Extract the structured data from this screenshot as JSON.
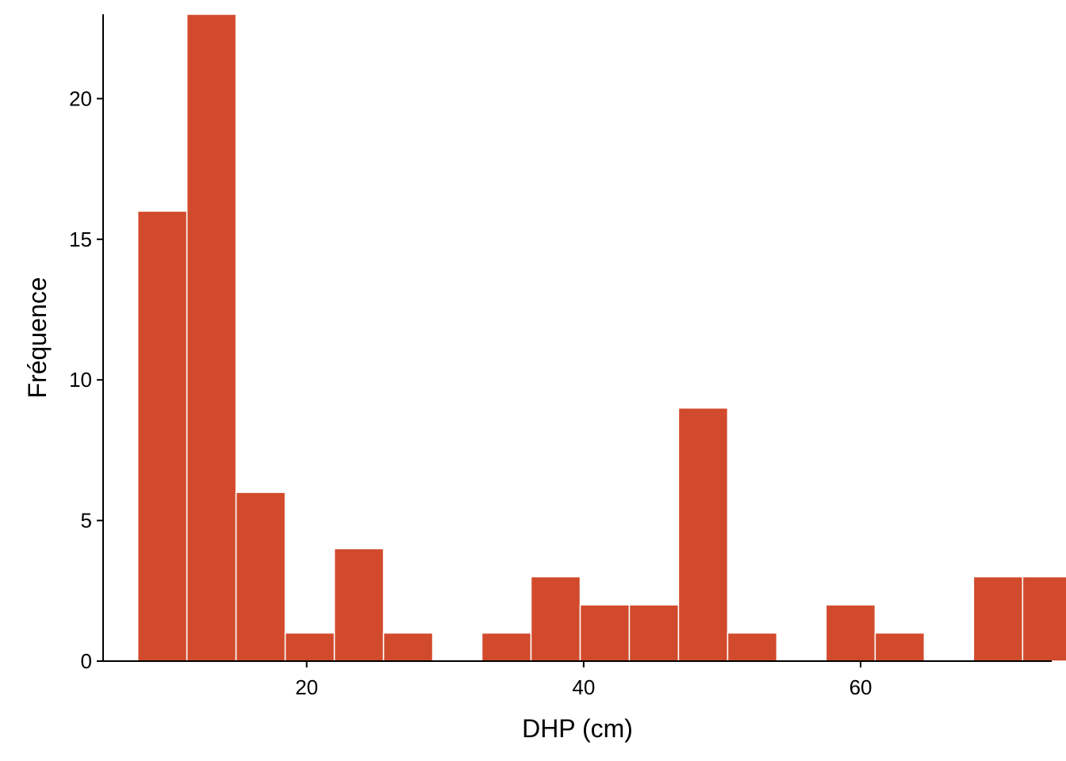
{
  "chart_data": {
    "type": "bar",
    "subtype": "histogram",
    "xlabel": "DHP (cm)",
    "ylabel": "Fréquence",
    "xlim": [
      5.3,
      73.8
    ],
    "ylim": [
      0,
      23
    ],
    "bin_width": 3.55,
    "x_ticks": [
      20,
      40,
      60
    ],
    "y_ticks": [
      0,
      5,
      10,
      15,
      20
    ],
    "bar_color": "#D24A2C",
    "bar_edge_color": "#FFFFFF",
    "grid": false,
    "bins": [
      {
        "x0": 7.8,
        "x1": 11.35,
        "count": 16
      },
      {
        "x0": 11.35,
        "x1": 14.9,
        "count": 23
      },
      {
        "x0": 14.9,
        "x1": 18.45,
        "count": 6
      },
      {
        "x0": 18.45,
        "x1": 22.0,
        "count": 1
      },
      {
        "x0": 22.0,
        "x1": 25.55,
        "count": 4
      },
      {
        "x0": 25.55,
        "x1": 29.1,
        "count": 1
      },
      {
        "x0": 29.1,
        "x1": 32.65,
        "count": 0
      },
      {
        "x0": 32.65,
        "x1": 36.2,
        "count": 1
      },
      {
        "x0": 36.2,
        "x1": 39.75,
        "count": 3
      },
      {
        "x0": 39.75,
        "x1": 43.3,
        "count": 2
      },
      {
        "x0": 43.3,
        "x1": 46.85,
        "count": 2
      },
      {
        "x0": 46.85,
        "x1": 50.4,
        "count": 9
      },
      {
        "x0": 50.4,
        "x1": 53.95,
        "count": 1
      },
      {
        "x0": 53.95,
        "x1": 57.5,
        "count": 0
      },
      {
        "x0": 57.5,
        "x1": 61.05,
        "count": 2
      },
      {
        "x0": 61.05,
        "x1": 64.6,
        "count": 1
      },
      {
        "x0": 64.6,
        "x1": 68.15,
        "count": 0
      },
      {
        "x0": 68.15,
        "x1": 71.7,
        "count": 3
      },
      {
        "x0": 71.7,
        "x1": 75.25,
        "count": 3
      }
    ]
  }
}
